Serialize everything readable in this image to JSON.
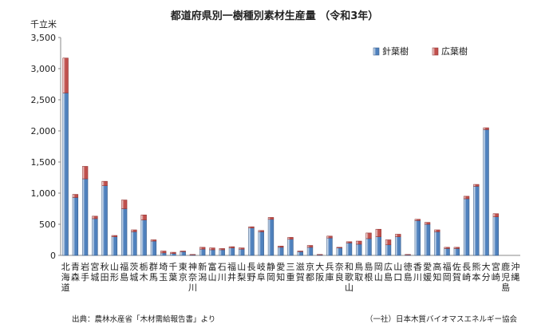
{
  "chart_data": {
    "type": "bar",
    "stacked": true,
    "title": "都道府県別一樹種別素材生産量 （令和3年）",
    "ylabel": "千立米",
    "ylim": [
      0,
      3500
    ],
    "yticks": [
      "0",
      "500",
      "1,000",
      "1,500",
      "2,000",
      "2,500",
      "3,000",
      "3,500"
    ],
    "ytick_values": [
      0,
      500,
      1000,
      1500,
      2000,
      2500,
      3000,
      3500
    ],
    "grid": false,
    "legend_position": "top-right",
    "categories": [
      "北海道",
      "青森県",
      "岩手県",
      "宮城県",
      "秋田県",
      "山形県",
      "福島県",
      "茨城県",
      "栃木県",
      "群馬県",
      "埼玉県",
      "千葉県",
      "東京都",
      "神奈川県",
      "新潟県",
      "富山県",
      "石川県",
      "福井県",
      "山梨県",
      "長野県",
      "岐阜県",
      "静岡県",
      "愛知県",
      "三重県",
      "滋賀県",
      "京都府",
      "大阪府",
      "兵庫県",
      "奈良県",
      "和歌山県",
      "鳥取県",
      "島根県",
      "岡山県",
      "広島県",
      "山口県",
      "徳島県",
      "香川県",
      "愛媛県",
      "高知県",
      "福岡県",
      "佐賀県",
      "長崎県",
      "熊本県",
      "大分県",
      "宮崎県",
      "鹿児島県",
      "沖縄県"
    ],
    "series": [
      {
        "name": "針葉樹",
        "color": "#4f81bd",
        "values": [
          2610,
          930,
          1230,
          590,
          1120,
          300,
          750,
          380,
          570,
          230,
          40,
          30,
          60,
          10,
          100,
          90,
          90,
          120,
          100,
          440,
          380,
          580,
          130,
          260,
          60,
          130,
          10,
          280,
          120,
          200,
          180,
          270,
          300,
          170,
          300,
          10,
          560,
          500,
          380,
          110,
          110,
          910,
          1110,
          2020,
          620,
          0,
          0
        ]
      },
      {
        "name": "広葉樹",
        "color": "#c0504d",
        "values": [
          560,
          50,
          200,
          40,
          70,
          20,
          140,
          30,
          80,
          20,
          30,
          20,
          10,
          5,
          30,
          30,
          20,
          20,
          20,
          20,
          20,
          30,
          20,
          30,
          10,
          30,
          5,
          30,
          10,
          20,
          50,
          90,
          120,
          80,
          40,
          5,
          20,
          30,
          30,
          20,
          20,
          40,
          30,
          30,
          50,
          0,
          0
        ]
      }
    ]
  },
  "cat_labels": [
    "北海道",
    "青森",
    "岩手",
    "宮城",
    "秋田",
    "山形",
    "福島",
    "茨城",
    "栃木",
    "群馬",
    "埼玉",
    "千葉",
    "東京",
    "神奈川",
    "新潟",
    "富山",
    "石川",
    "福井",
    "山梨",
    "長野",
    "岐阜",
    "静岡",
    "愛知",
    "三重",
    "滋賀",
    "京都",
    "大阪",
    "兵庫",
    "奈良",
    "和歌山",
    "鳥取",
    "島根",
    "岡山",
    "広島",
    "山口",
    "徳島",
    "香川",
    "愛媛",
    "高知",
    "福岡",
    "佐賀",
    "長崎",
    "熊本",
    "大分",
    "宮崎",
    "鹿児島",
    "沖縄"
  ],
  "footer": {
    "source": "出典：農林水産省「木材需給報告書」より",
    "credit": "（一社）日本木質バイオマスエネルギー協会"
  }
}
